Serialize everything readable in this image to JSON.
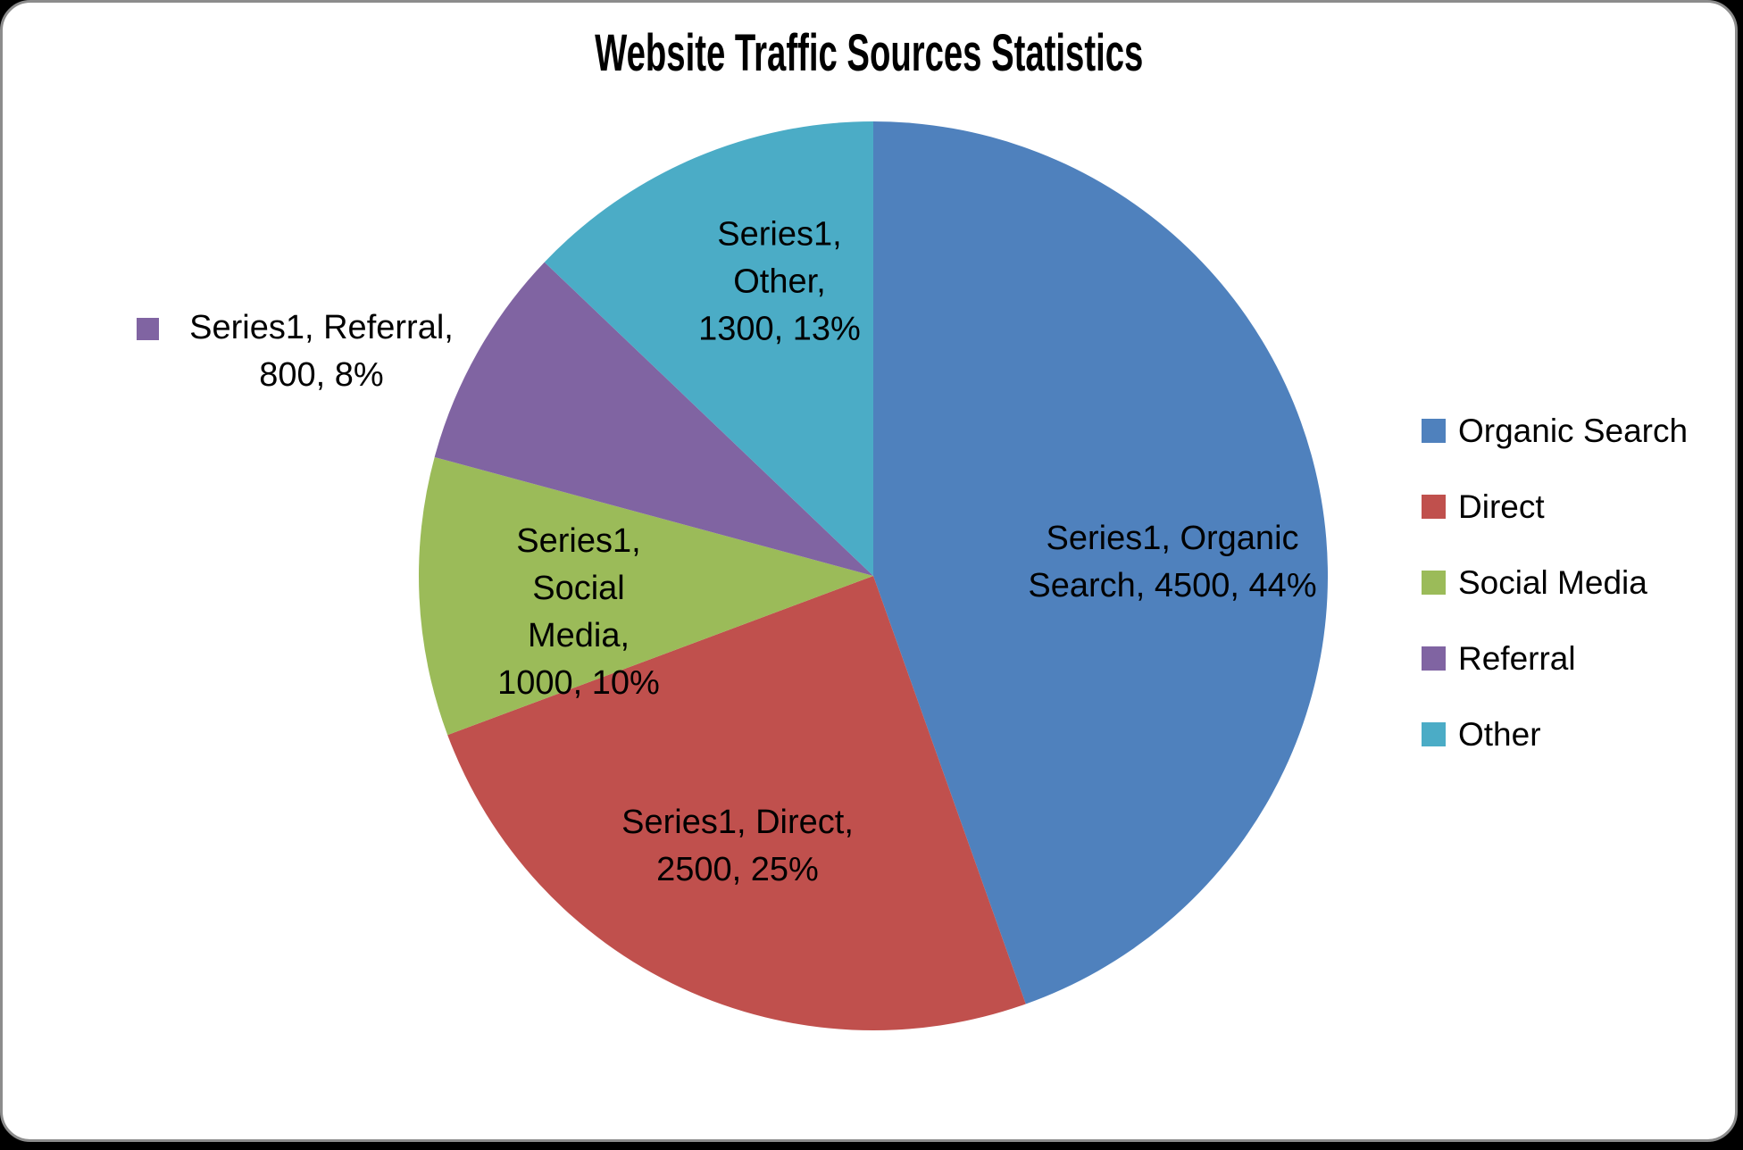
{
  "title": "Website Traffic Sources Statistics",
  "chart_data": {
    "type": "pie",
    "title": "Website Traffic Sources Statistics",
    "series_name": "Series1",
    "categories": [
      "Organic Search",
      "Direct",
      "Social Media",
      "Referral",
      "Other"
    ],
    "values": [
      4500,
      2500,
      1000,
      800,
      1300
    ],
    "percents": [
      44,
      25,
      10,
      8,
      13
    ],
    "colors": [
      "#4F81BD",
      "#C0504D",
      "#9BBB59",
      "#8064A2",
      "#4BACC6"
    ],
    "legend_position": "right",
    "start_angle_deg": 0,
    "direction": "clockwise",
    "label_format": "series, category, value, percent"
  },
  "data_labels": {
    "organic_search": "Series1, Organic\nSearch, 4500, 44%",
    "direct": "Series1, Direct,\n2500, 25%",
    "social_media": "Series1,\nSocial\nMedia,\n1000, 10%",
    "referral": "Series1, Referral,\n800, 8%",
    "other": "Series1,\nOther,\n1300, 13%"
  },
  "legend": {
    "items": [
      {
        "label": "Organic Search",
        "color": "#4F81BD"
      },
      {
        "label": "Direct",
        "color": "#C0504D"
      },
      {
        "label": "Social Media",
        "color": "#9BBB59"
      },
      {
        "label": "Referral",
        "color": "#8064A2"
      },
      {
        "label": "Other",
        "color": "#4BACC6"
      }
    ]
  }
}
